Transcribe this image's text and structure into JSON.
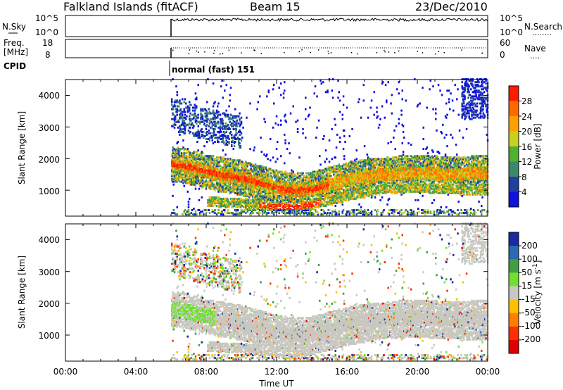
{
  "header": {
    "station": "Falkland Islands (fitACF)",
    "beam": "Beam 15",
    "date": "23/Dec/2010"
  },
  "noise_panel": {
    "left_label": "N.Sky",
    "left_ticks": [
      "10^5",
      "10^0"
    ],
    "right_ticks": [
      "10^5",
      "10^0"
    ],
    "right_label": "N.Search",
    "right_dots": "........"
  },
  "freq_panel": {
    "left_label_line1": "Freq.",
    "left_label_line2": "[MHz]",
    "left_ticks": [
      "18",
      "8"
    ],
    "right_ticks": [
      "60",
      "0"
    ],
    "right_label": "Nave",
    "right_dots": "...."
  },
  "cpid": {
    "label": "CPID",
    "mode": "normal (fast) 151"
  },
  "range_axis": {
    "label": "Slant Range [km]",
    "ticks": [
      "4000",
      "3000",
      "2000",
      "1000"
    ]
  },
  "time_axis": {
    "label": "Time UT",
    "ticks": [
      "00:00",
      "04:00",
      "08:00",
      "12:00",
      "16:00",
      "20:00",
      "00:00"
    ]
  },
  "power_scale": {
    "label": "Power [dB]",
    "ticks": [
      "28",
      "24",
      "20",
      "16",
      "12",
      "8",
      "4"
    ],
    "colors": [
      "#ff1a00",
      "#ff6a00",
      "#ffa000",
      "#c8d020",
      "#50b030",
      "#3a8a6a",
      "#2040a0",
      "#1010e0"
    ]
  },
  "velocity_scale": {
    "label": "Velocity [m s",
    "label_sup": "-1",
    "label_end": "]",
    "ticks": [
      "200",
      "100",
      "50",
      "15",
      "-15",
      "-50",
      "-100",
      "-200"
    ],
    "colors": [
      "#1a2aa0",
      "#2a6ab0",
      "#40a040",
      "#70e030",
      "#c8c8c0",
      "#ffc000",
      "#ff8000",
      "#ff3000",
      "#e00000"
    ]
  },
  "chart_data": {
    "type": "heatmap",
    "x_unit": "hours UT",
    "xlim": [
      0,
      24
    ],
    "y_unit": "km",
    "ylim": [
      180,
      4500
    ],
    "data_start_hour": 6,
    "panels": [
      "Power [dB]",
      "Velocity"
    ],
    "power_band_hour_km": [
      [
        6,
        1800
      ],
      [
        7,
        1700
      ],
      [
        8,
        1550
      ],
      [
        9,
        1450
      ],
      [
        10,
        1350
      ],
      [
        11,
        1200
      ],
      [
        12,
        1050
      ],
      [
        13,
        950
      ],
      [
        14,
        1000
      ],
      [
        15,
        1150
      ],
      [
        16,
        1300
      ],
      [
        17,
        1400
      ],
      [
        18,
        1450
      ],
      [
        19,
        1500
      ],
      [
        20,
        1500
      ],
      [
        21,
        1500
      ],
      [
        22,
        1450
      ],
      [
        23,
        1500
      ],
      [
        24,
        1500
      ]
    ],
    "lower_band_hour_km": [
      [
        8,
        600
      ],
      [
        10,
        550
      ],
      [
        12,
        450
      ],
      [
        13,
        420
      ],
      [
        14,
        520
      ],
      [
        16,
        800
      ],
      [
        18,
        1000
      ],
      [
        20,
        1050
      ],
      [
        22,
        1000
      ],
      [
        24,
        950
      ]
    ],
    "far_band_hour_km": [
      [
        6,
        3400
      ],
      [
        7,
        3200
      ],
      [
        8,
        3050
      ],
      [
        9,
        2900
      ],
      [
        10,
        2800
      ]
    ]
  }
}
